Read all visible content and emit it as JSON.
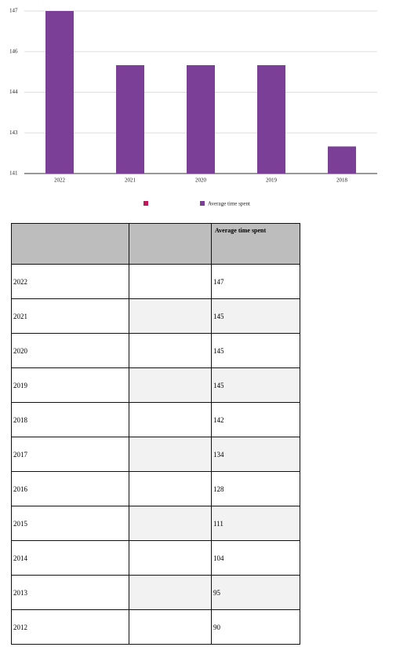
{
  "chart_data": {
    "type": "bar",
    "categories": [
      "2022",
      "2021",
      "2020",
      "2019",
      "2018"
    ],
    "series": [
      {
        "name": "Average time spent",
        "color": "#7b3f98",
        "values": [
          147,
          145,
          145,
          145,
          142
        ]
      }
    ],
    "ylim": [
      141,
      147
    ],
    "yticks": [
      141,
      {
        "value": 142.5,
        "label": "143"
      },
      144,
      {
        "value": 145.5,
        "label": "146"
      },
      147
    ],
    "grid": true
  },
  "table": {
    "header": "Average time spent",
    "rows": [
      [
        "2022",
        "147"
      ],
      [
        "2021",
        "145"
      ],
      [
        "2020",
        "145"
      ],
      [
        "2019",
        "145"
      ],
      [
        "2018",
        "142"
      ],
      [
        "2017",
        "134"
      ],
      [
        "2016",
        "128"
      ],
      [
        "2015",
        "111"
      ],
      [
        "2014",
        "104"
      ],
      [
        "2013",
        "95"
      ],
      [
        "2012",
        "90"
      ]
    ]
  }
}
